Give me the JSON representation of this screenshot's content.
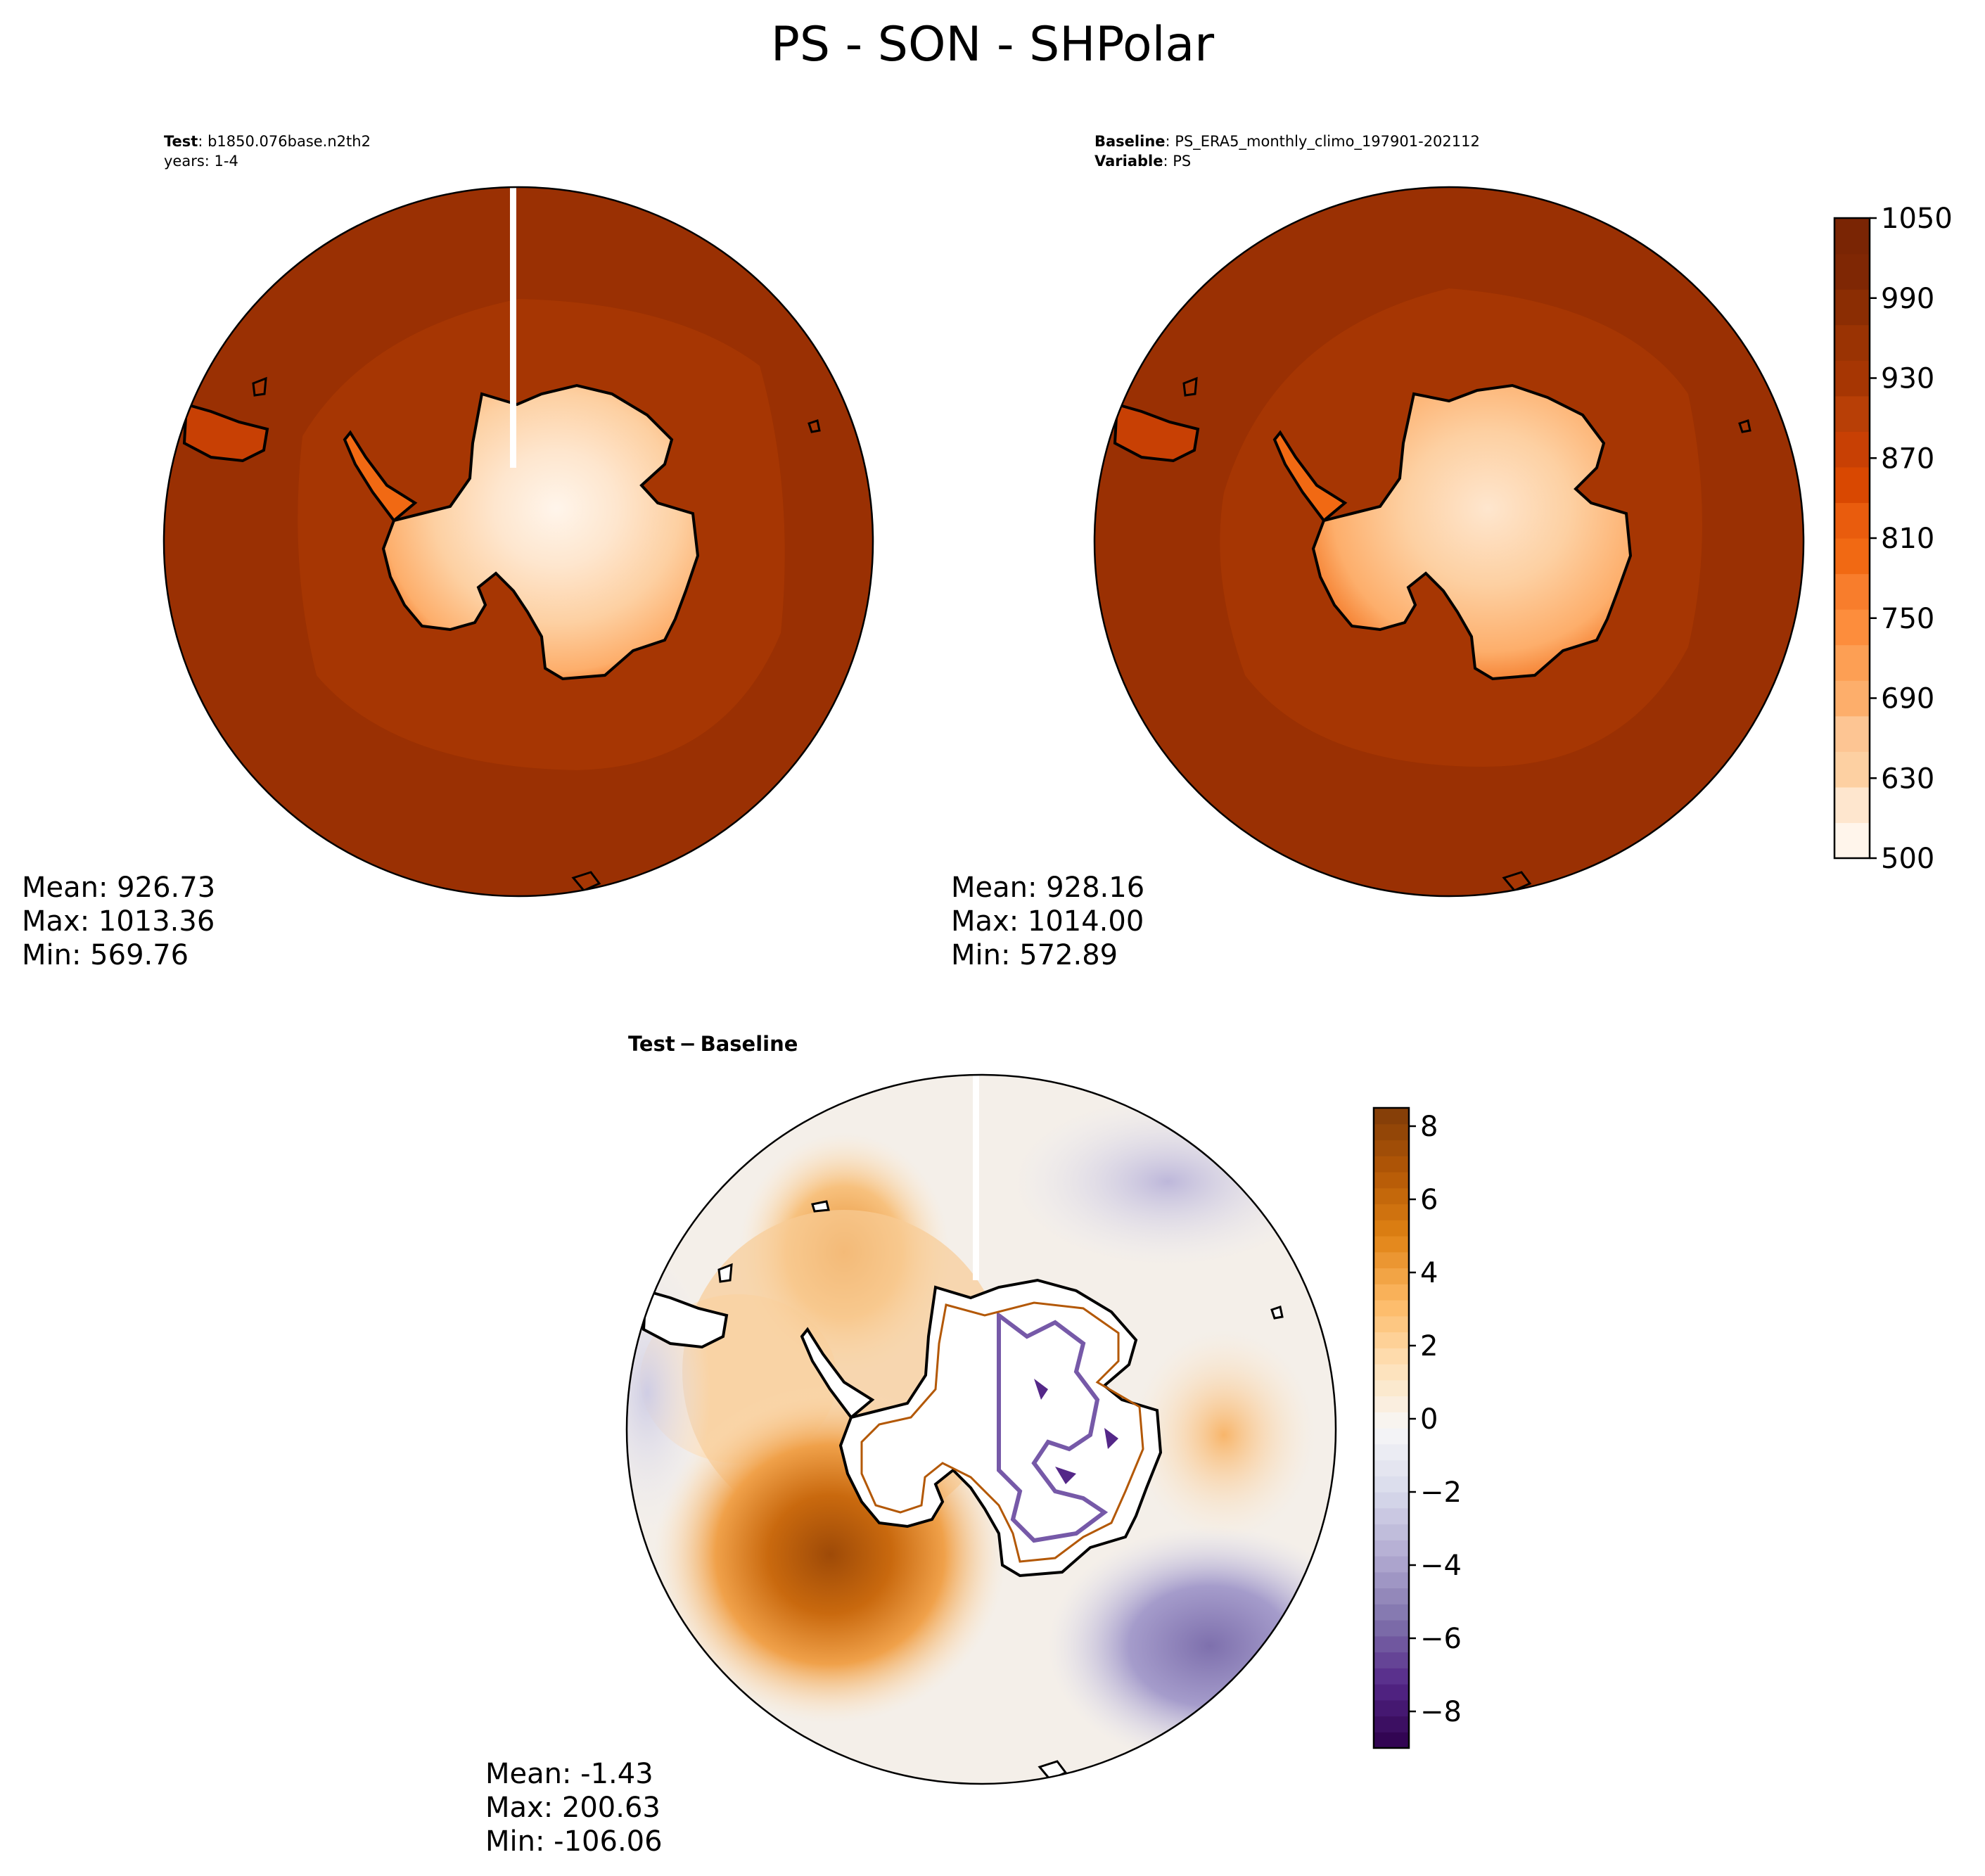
{
  "figure": {
    "title": "PS - SON - SHPolar"
  },
  "panels": [
    {
      "id": "test",
      "header": [
        {
          "key": "Test",
          "sep": ": ",
          "value": "b1850.076base.n2th2"
        },
        {
          "key": "",
          "sep": "",
          "value": "years: 1-4"
        }
      ],
      "stats": {
        "mean": "Mean: 926.73",
        "max": "Max: 1013.36",
        "min": "Min: 569.76"
      }
    },
    {
      "id": "baseline",
      "header": [
        {
          "key": "Baseline",
          "sep": ": ",
          "value": "PS_ERA5_monthly_climo_197901-202112"
        },
        {
          "key": "Variable",
          "sep": ": ",
          "value": "PS"
        }
      ],
      "stats": {
        "mean": "Mean: 928.16",
        "max": "Max: 1014.00",
        "min": "Min: 572.89"
      }
    },
    {
      "id": "difference",
      "header": [
        {
          "key": "Test − Baseline",
          "sep": "",
          "value": ""
        }
      ],
      "stats": {
        "mean": "Mean: -1.43",
        "max": "Max: 200.63",
        "min": "Min: -106.06"
      }
    }
  ],
  "colorbars": {
    "absolute": {
      "colormap": "Oranges",
      "ticks": [
        "1050",
        "990",
        "930",
        "870",
        "810",
        "750",
        "690",
        "630",
        "500"
      ],
      "levels": 18,
      "colors": [
        "#fff5eb",
        "#fee6ce",
        "#fdd0a2",
        "#fdc593",
        "#fdae6b",
        "#fd9f54",
        "#fd8d3c",
        "#f87d2c",
        "#f16913",
        "#e95c0d",
        "#d94801",
        "#c84004",
        "#b83f06",
        "#a63603",
        "#9a3303",
        "#8b2d03",
        "#7f2704",
        "#7a2504"
      ]
    },
    "difference": {
      "colormap": "PuOr_r",
      "ticks": [
        "8",
        "6",
        "4",
        "2",
        "0",
        "−2",
        "−4",
        "−6",
        "−8"
      ],
      "tick_values": [
        8,
        6,
        4,
        2,
        0,
        -2,
        -4,
        -6,
        -8
      ],
      "range": [
        -9,
        8.5
      ],
      "colors": [
        "#2d004b",
        "#542788",
        "#8073ac",
        "#b2abd2",
        "#d8daeb",
        "#f7f7f7",
        "#fee0b6",
        "#fdb863",
        "#e08214",
        "#b35806",
        "#7f3b08"
      ]
    }
  },
  "map_colors": {
    "ocean_outer": "#9a3003",
    "ocean_inner": "#a63603",
    "diff_white": "#ffffff",
    "diff_purple": "#5e3c99",
    "coast": "#000000"
  }
}
